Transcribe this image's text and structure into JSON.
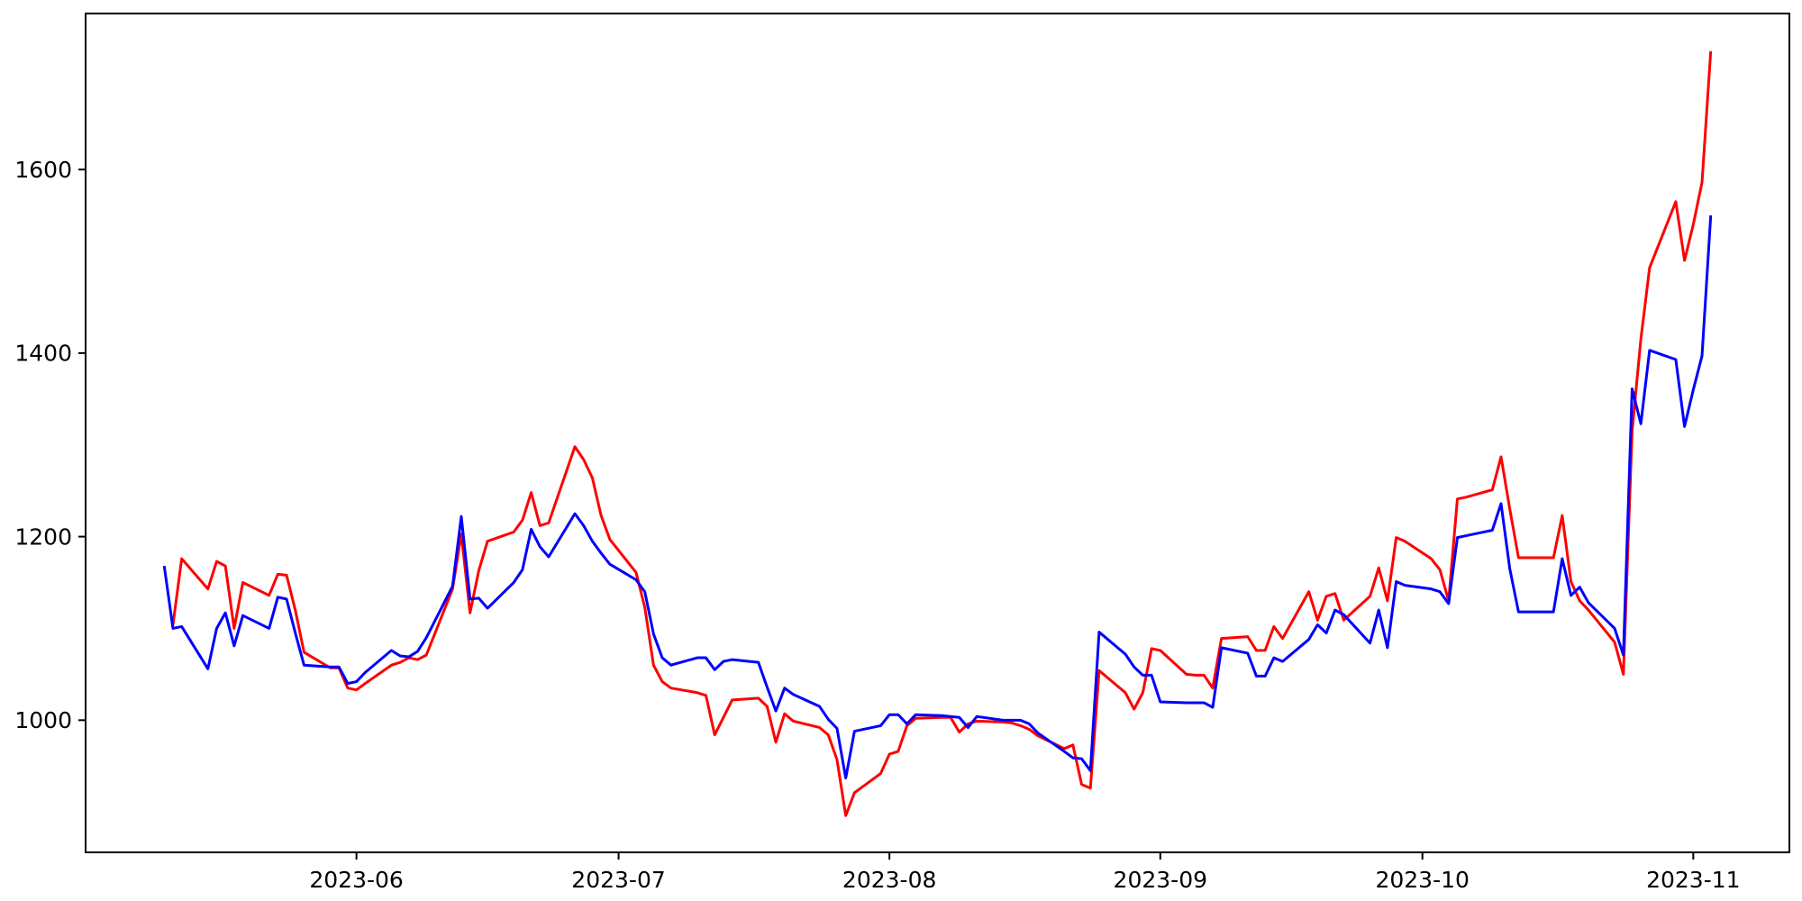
{
  "chart_data": {
    "type": "line",
    "title": "",
    "xlabel": "",
    "ylabel": "",
    "grid": false,
    "legend": "none",
    "background_color": "#ffffff",
    "frame_color": "#000000",
    "xlim": [
      "2023-05-01",
      "2023-11-12"
    ],
    "ylim": [
      856,
      1770
    ],
    "y_ticks": [
      1000,
      1200,
      1400,
      1600
    ],
    "x_ticks": [
      {
        "label": "2023-06",
        "date": "2023-06-01"
      },
      {
        "label": "2023-07",
        "date": "2023-07-01"
      },
      {
        "label": "2023-08",
        "date": "2023-08-01"
      },
      {
        "label": "2023-09",
        "date": "2023-09-01"
      },
      {
        "label": "2023-10",
        "date": "2023-10-01"
      },
      {
        "label": "2023-11",
        "date": "2023-11-01"
      }
    ],
    "x": [
      "2023-05-10",
      "2023-05-11",
      "2023-05-12",
      "2023-05-15",
      "2023-05-16",
      "2023-05-17",
      "2023-05-18",
      "2023-05-19",
      "2023-05-22",
      "2023-05-23",
      "2023-05-24",
      "2023-05-25",
      "2023-05-26",
      "2023-05-29",
      "2023-05-30",
      "2023-05-31",
      "2023-06-01",
      "2023-06-02",
      "2023-06-05",
      "2023-06-06",
      "2023-06-07",
      "2023-06-08",
      "2023-06-09",
      "2023-06-12",
      "2023-06-13",
      "2023-06-14",
      "2023-06-15",
      "2023-06-16",
      "2023-06-19",
      "2023-06-20",
      "2023-06-21",
      "2023-06-22",
      "2023-06-23",
      "2023-06-26",
      "2023-06-27",
      "2023-06-28",
      "2023-06-29",
      "2023-06-30",
      "2023-07-03",
      "2023-07-04",
      "2023-07-05",
      "2023-07-06",
      "2023-07-07",
      "2023-07-10",
      "2023-07-11",
      "2023-07-12",
      "2023-07-13",
      "2023-07-14",
      "2023-07-17",
      "2023-07-18",
      "2023-07-19",
      "2023-07-20",
      "2023-07-21",
      "2023-07-24",
      "2023-07-25",
      "2023-07-26",
      "2023-07-27",
      "2023-07-28",
      "2023-07-31",
      "2023-08-01",
      "2023-08-02",
      "2023-08-03",
      "2023-08-04",
      "2023-08-07",
      "2023-08-08",
      "2023-08-09",
      "2023-08-10",
      "2023-08-11",
      "2023-08-14",
      "2023-08-15",
      "2023-08-16",
      "2023-08-17",
      "2023-08-18",
      "2023-08-21",
      "2023-08-22",
      "2023-08-23",
      "2023-08-24",
      "2023-08-25",
      "2023-08-28",
      "2023-08-29",
      "2023-08-30",
      "2023-08-31",
      "2023-09-01",
      "2023-09-04",
      "2023-09-05",
      "2023-09-06",
      "2023-09-07",
      "2023-09-08",
      "2023-09-11",
      "2023-09-12",
      "2023-09-13",
      "2023-09-14",
      "2023-09-15",
      "2023-09-18",
      "2023-09-19",
      "2023-09-20",
      "2023-09-21",
      "2023-09-22",
      "2023-09-25",
      "2023-09-26",
      "2023-09-27",
      "2023-09-28",
      "2023-09-29",
      "2023-10-02",
      "2023-10-03",
      "2023-10-04",
      "2023-10-05",
      "2023-10-06",
      "2023-10-09",
      "2023-10-10",
      "2023-10-11",
      "2023-10-12",
      "2023-10-13",
      "2023-10-16",
      "2023-10-17",
      "2023-10-18",
      "2023-10-19",
      "2023-10-20",
      "2023-10-23",
      "2023-10-24",
      "2023-10-25",
      "2023-10-26",
      "2023-10-27",
      "2023-10-30",
      "2023-10-31",
      "2023-11-01",
      "2023-11-02",
      "2023-11-03"
    ],
    "series": [
      {
        "name": "red-series",
        "color": "#ff0000",
        "line_width": 3,
        "values": [
          null,
          1104,
          1176,
          1143,
          1173,
          1168,
          1100,
          1150,
          1136,
          1159,
          1158,
          1120,
          1074,
          1057,
          1057,
          1035,
          1033,
          1040,
          1060,
          1063,
          1068,
          1066,
          1071,
          1143,
          1203,
          1117,
          1163,
          1195,
          1205,
          1218,
          1248,
          1212,
          1215,
          1298,
          1284,
          1264,
          1223,
          1197,
          1161,
          1123,
          1060,
          1042,
          1035,
          1030,
          1027,
          984,
          1003,
          1022,
          1024,
          1015,
          976,
          1007,
          999,
          992,
          984,
          957,
          896,
          921,
          942,
          963,
          966,
          994,
          1002,
          1003,
          1003,
          987,
          996,
          999,
          998,
          997,
          994,
          990,
          983,
          969,
          973,
          930,
          926,
          1054,
          1030,
          1012,
          1030,
          1078,
          1076,
          1050,
          1049,
          1049,
          1035,
          1089,
          1091,
          1076,
          1076,
          1102,
          1089,
          1140,
          1109,
          1135,
          1138,
          1109,
          1135,
          1166,
          1130,
          1199,
          1195,
          1176,
          1164,
          1130,
          1241,
          1243,
          1251,
          1287,
          1230,
          1177,
          1177,
          1177,
          1223,
          1151,
          1130,
          1120,
          1085,
          1050,
          1315,
          1415,
          1493,
          1565,
          1501,
          1540,
          1586,
          1729
        ]
      },
      {
        "name": "blue-series",
        "color": "#0000ff",
        "line_width": 3,
        "values": [
          1168,
          1100,
          1102,
          1056,
          1100,
          1117,
          1081,
          1114,
          1100,
          1134,
          1132,
          1095,
          1060,
          1058,
          1058,
          1040,
          1042,
          1052,
          1076,
          1070,
          1069,
          1075,
          1090,
          1146,
          1222,
          1132,
          1133,
          1122,
          1150,
          1164,
          1208,
          1189,
          1178,
          1225,
          1212,
          1195,
          1182,
          1170,
          1153,
          1140,
          1094,
          1068,
          1060,
          1068,
          1068,
          1055,
          1064,
          1066,
          1063,
          1036,
          1010,
          1035,
          1028,
          1015,
          1001,
          991,
          937,
          988,
          994,
          1006,
          1006,
          996,
          1006,
          1005,
          1004,
          1003,
          992,
          1004,
          1000,
          1000,
          1000,
          996,
          986,
          966,
          959,
          958,
          945,
          1096,
          1072,
          1058,
          1049,
          1049,
          1020,
          1019,
          1019,
          1019,
          1014,
          1079,
          1073,
          1048,
          1048,
          1068,
          1064,
          1088,
          1104,
          1095,
          1120,
          1115,
          1084,
          1120,
          1079,
          1151,
          1147,
          1143,
          1140,
          1127,
          1199,
          1201,
          1207,
          1236,
          1165,
          1118,
          1118,
          1118,
          1176,
          1136,
          1145,
          1128,
          1100,
          1071,
          1361,
          1323,
          1403,
          1393,
          1320,
          1360,
          1397,
          1550
        ]
      }
    ]
  }
}
